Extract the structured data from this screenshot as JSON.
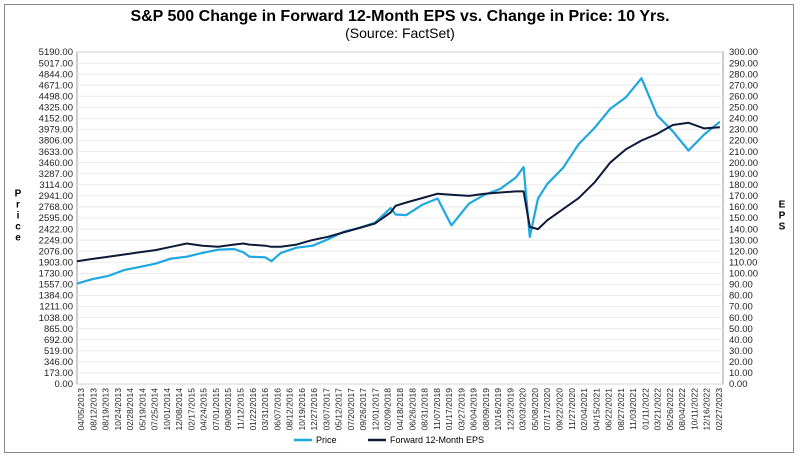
{
  "title": "S&P 500 Change in Forward 12-Month EPS vs. Change in Price: 10 Yrs.",
  "subtitle": "(Source: FactSet)",
  "chart_data": {
    "type": "line",
    "title": "S&P 500 Change in Forward 12-Month EPS vs. Change in Price: 10 Yrs.",
    "subtitle": "(Source: FactSet)",
    "ylabel_left": "Price",
    "ylabel_right": "EPS",
    "ylim_left": [
      0,
      5190
    ],
    "ylim_right": [
      0,
      300
    ],
    "yticks_left": [
      "0.00",
      "173.00",
      "346.00",
      "519.00",
      "692.00",
      "865.00",
      "1038.00",
      "1211.00",
      "1384.00",
      "1557.00",
      "1730.00",
      "1903.00",
      "2076.00",
      "2249.00",
      "2422.00",
      "2595.00",
      "2768.00",
      "2941.00",
      "3114.00",
      "3287.00",
      "3460.00",
      "3633.00",
      "3806.00",
      "3979.00",
      "4152.00",
      "4325.00",
      "4498.00",
      "4671.00",
      "4844.00",
      "5017.00",
      "5190.00"
    ],
    "yticks_right": [
      "0.00",
      "10.00",
      "20.00",
      "30.00",
      "40.00",
      "50.00",
      "60.00",
      "70.00",
      "80.00",
      "90.00",
      "100.00",
      "110.00",
      "120.00",
      "130.00",
      "140.00",
      "150.00",
      "160.00",
      "170.00",
      "180.00",
      "190.00",
      "200.00",
      "210.00",
      "220.00",
      "230.00",
      "240.00",
      "250.00",
      "260.00",
      "270.00",
      "280.00",
      "290.00",
      "300.00"
    ],
    "xticks": [
      "04/05/2013",
      "08/12/2013",
      "08/19/2013",
      "10/24/2013",
      "02/28/2014",
      "05/19/2014",
      "07/25/2014",
      "10/01/2014",
      "12/08/2014",
      "02/17/2015",
      "04/24/2015",
      "07/01/2015",
      "09/08/2015",
      "11/12/2015",
      "01/22/2016",
      "03/31/2016",
      "06/07/2016",
      "08/12/2016",
      "10/19/2016",
      "12/27/2016",
      "03/07/2017",
      "05/12/2017",
      "07/20/2017",
      "09/26/2017",
      "12/01/2017",
      "02/09/2018",
      "04/18/2018",
      "06/26/2018",
      "08/31/2018",
      "11/07/2018",
      "01/17/2019",
      "03/27/2019",
      "06/04/2019",
      "08/09/2019",
      "10/16/2019",
      "12/23/2019",
      "03/03/2020",
      "05/08/2020",
      "07/17/2020",
      "09/22/2020",
      "11/27/2020",
      "02/04/2021",
      "04/15/2021",
      "06/22/2021",
      "08/27/2021",
      "11/03/2021",
      "01/11/2022",
      "03/21/2022",
      "05/26/2022",
      "08/04/2022",
      "10/11/2022",
      "12/16/2022",
      "02/27/2023"
    ],
    "x": [
      2013.0,
      2013.25,
      2013.5,
      2013.75,
      2014.0,
      2014.25,
      2014.5,
      2014.75,
      2015.0,
      2015.25,
      2015.5,
      2015.65,
      2015.75,
      2016.0,
      2016.1,
      2016.25,
      2016.5,
      2016.75,
      2017.0,
      2017.25,
      2017.5,
      2017.75,
      2018.0,
      2018.08,
      2018.25,
      2018.5,
      2018.75,
      2018.97,
      2019.25,
      2019.5,
      2019.75,
      2020.0,
      2020.12,
      2020.22,
      2020.35,
      2020.5,
      2020.75,
      2021.0,
      2021.25,
      2021.5,
      2021.75,
      2022.0,
      2022.25,
      2022.5,
      2022.75,
      2023.0,
      2023.25
    ],
    "series": [
      {
        "name": "Price",
        "color": "#1ea7e1",
        "axis": "left",
        "values": [
          1570,
          1640,
          1690,
          1780,
          1830,
          1880,
          1960,
          1990,
          2050,
          2100,
          2110,
          2060,
          1990,
          1980,
          1920,
          2050,
          2130,
          2160,
          2260,
          2380,
          2440,
          2520,
          2750,
          2650,
          2640,
          2800,
          2900,
          2480,
          2820,
          2960,
          3050,
          3230,
          3390,
          2300,
          2900,
          3130,
          3380,
          3750,
          4000,
          4300,
          4480,
          4780,
          4200,
          3950,
          3650,
          3900,
          4100
        ]
      },
      {
        "name": "Forward 12-Month EPS",
        "color": "#0e1a3a",
        "axis": "right",
        "values": [
          111,
          113,
          115,
          117,
          119,
          121,
          124,
          127,
          125,
          124,
          126,
          127,
          126,
          125,
          124,
          124,
          126,
          130,
          133,
          137,
          141,
          145,
          155,
          161,
          164,
          168,
          172,
          171,
          170,
          172,
          173,
          174,
          174,
          142,
          140,
          148,
          158,
          168,
          182,
          200,
          212,
          220,
          226,
          234,
          236,
          231,
          232
        ]
      }
    ],
    "legend": [
      "Price",
      "Forward 12-Month EPS"
    ],
    "legend_position": "bottom"
  }
}
